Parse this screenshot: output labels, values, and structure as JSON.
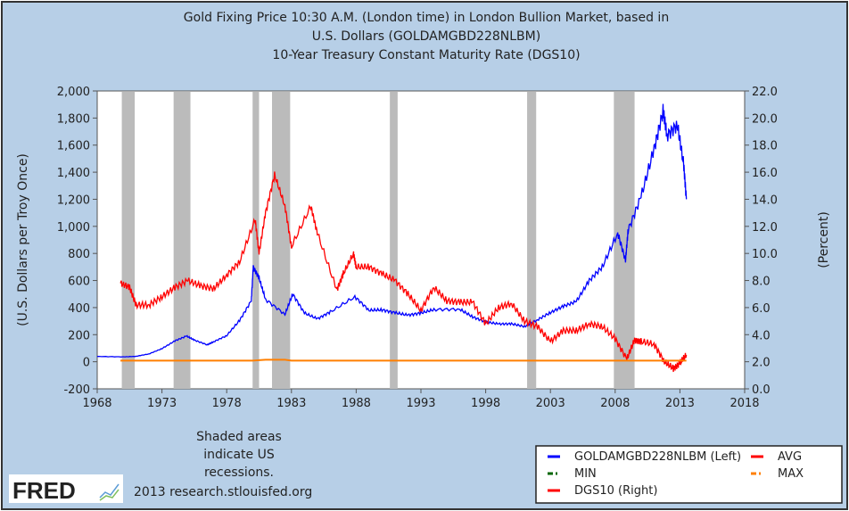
{
  "chart_data": {
    "type": "line",
    "title_lines": [
      "Gold Fixing Price 10:30 A.M. (London time) in London Bullion Market, based in",
      "U.S. Dollars (GOLDAMGBD228NLBM)",
      "10-Year Treasury Constant Maturity Rate (DGS10)"
    ],
    "ylabel_left": "(U.S. Dollars per Troy Once)",
    "ylabel_right": "(Percent)",
    "xlim": [
      1968,
      2018
    ],
    "ylim_left": [
      -200,
      2000
    ],
    "ylim_right": [
      0,
      22
    ],
    "x_ticks": [
      "1968",
      "1973",
      "1978",
      "1983",
      "1988",
      "1993",
      "1998",
      "2003",
      "2008",
      "2013",
      "2018"
    ],
    "y_ticks_left": [
      "2,000",
      "1,800",
      "1,600",
      "1,400",
      "1,200",
      "1,000",
      "800",
      "600",
      "400",
      "200",
      "0",
      "-200"
    ],
    "y_ticks_right": [
      "22.0",
      "20.0",
      "18.0",
      "16.0",
      "14.0",
      "12.0",
      "10.0",
      "8.0",
      "6.0",
      "4.0",
      "2.0",
      "0.0"
    ],
    "grid": false,
    "recessions": [
      [
        1969.9,
        1970.9
      ],
      [
        1973.9,
        1975.2
      ],
      [
        1980.0,
        1980.5
      ],
      [
        1981.5,
        1982.9
      ],
      [
        1990.6,
        1991.2
      ],
      [
        2001.2,
        2001.9
      ],
      [
        2007.9,
        2009.5
      ]
    ],
    "series": [
      {
        "name": "GOLDAMGBD228NLBM (Left)",
        "axis": "left",
        "color": "#0000ff",
        "style": "solid",
        "x": [
          1968,
          1970,
          1971,
          1972,
          1973,
          1974,
          1974.9,
          1975.5,
          1976.5,
          1977,
          1978,
          1979,
          1979.9,
          1980.05,
          1980.5,
          1981,
          1982.5,
          1983.1,
          1984,
          1985,
          1986,
          1987.9,
          1989,
          1990,
          1991,
          1992,
          1993,
          1994,
          1996,
          1997,
          1998,
          1999,
          2000,
          2001,
          2002,
          2003,
          2004,
          2005,
          2006,
          2007,
          2008.2,
          2008.8,
          2009,
          2010,
          2011,
          2011.7,
          2012,
          2012.8,
          2013.3,
          2013.5
        ],
        "y": [
          39,
          36,
          40,
          58,
          97,
          154,
          190,
          160,
          125,
          148,
          193,
          306,
          450,
          700,
          620,
          460,
          350,
          500,
          360,
          317,
          368,
          480,
          380,
          383,
          362,
          344,
          360,
          385,
          388,
          331,
          294,
          279,
          280,
          260,
          310,
          363,
          410,
          445,
          600,
          700,
          950,
          750,
          970,
          1220,
          1570,
          1850,
          1670,
          1750,
          1450,
          1200
        ]
      },
      {
        "name": "DGS10 (Right)",
        "axis": "right",
        "color": "#ff0000",
        "style": "solid",
        "x": [
          1969.8,
          1970.5,
          1971,
          1972,
          1973,
          1974,
          1975,
          1976,
          1977,
          1978,
          1979,
          1980.2,
          1980.5,
          1981,
          1981.7,
          1982.5,
          1983,
          1984.5,
          1985,
          1986.5,
          1987,
          1987.8,
          1988,
          1989,
          1990,
          1991,
          1992,
          1993,
          1994,
          1995,
          1996,
          1997,
          1998,
          1999,
          2000,
          2001,
          2002,
          2003,
          2004,
          2005,
          2006,
          2007,
          2008,
          2008.9,
          2009.5,
          2010,
          2011,
          2011.8,
          2012.5,
          2013,
          2013.5
        ],
        "y": [
          7.8,
          7.5,
          6.2,
          6.2,
          6.8,
          7.5,
          8.0,
          7.6,
          7.4,
          8.4,
          9.4,
          12.5,
          10,
          13,
          15.8,
          13.5,
          10.5,
          13.5,
          11.5,
          7.3,
          8.5,
          10,
          9,
          9,
          8.5,
          8,
          7,
          5.8,
          7.5,
          6.5,
          6.4,
          6.4,
          4.8,
          6,
          6.3,
          5,
          4.6,
          3.5,
          4.3,
          4.3,
          4.8,
          4.6,
          3.7,
          2.2,
          3.6,
          3.5,
          3.3,
          2.0,
          1.5,
          1.9,
          2.5
        ]
      },
      {
        "name": "MAX",
        "axis": "left",
        "color": "#ff7f00",
        "style": "dashdot",
        "x": [
          1969.8,
          1980,
          1981,
          1982.5,
          1983,
          2013.5
        ],
        "y": [
          8,
          8,
          15,
          15,
          8,
          8
        ]
      }
    ],
    "legend": {
      "placement": "bottom-right",
      "entries": [
        {
          "label": "GOLDAMGBD228NLBM (Left)",
          "color": "#0000ff",
          "style": "solid"
        },
        {
          "label": "AVG",
          "color": "#ff0000",
          "style": "solid"
        },
        {
          "label": "MIN",
          "color": "#006600",
          "style": "dashdot"
        },
        {
          "label": "MAX",
          "color": "#ff7f00",
          "style": "dashdot"
        },
        {
          "label": "DGS10 (Right)",
          "color": "#ff0000",
          "style": "solid"
        }
      ]
    }
  },
  "footer": {
    "note_lines": [
      "Shaded areas",
      "indicate US",
      "recessions."
    ],
    "credit": "2013 research.stlouisfed.org",
    "logo_text": "FRED"
  }
}
